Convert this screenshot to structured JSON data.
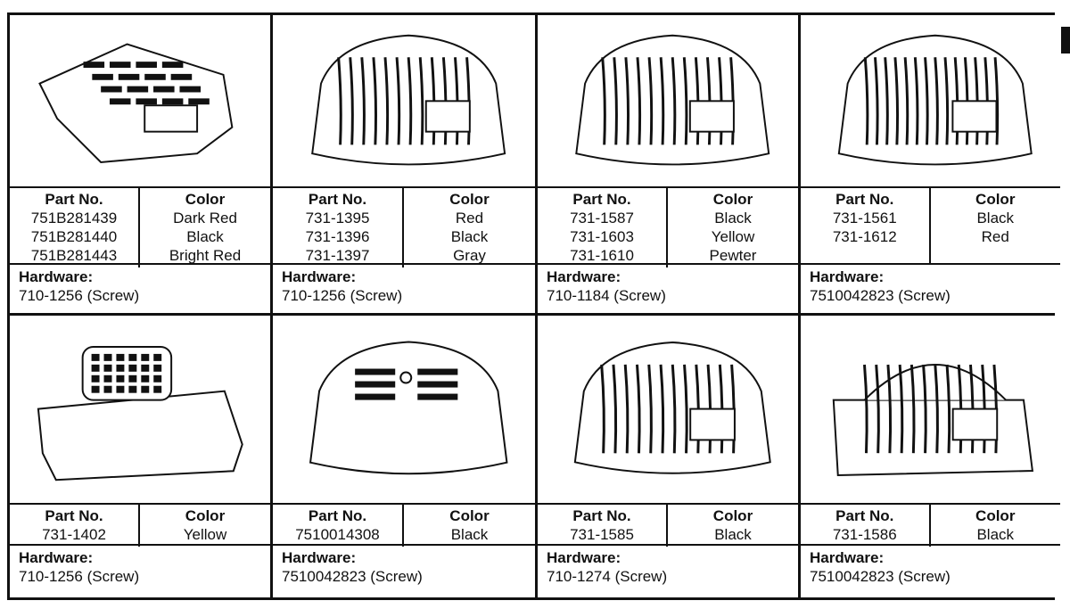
{
  "labels": {
    "part_no": "Part No.",
    "color": "Color",
    "hardware": "Hardware:"
  },
  "parts": [
    {
      "parts": [
        "751B281439",
        "751B281440",
        "751B281443"
      ],
      "colors": [
        "Dark Red",
        "Black",
        "Bright Red"
      ],
      "hardware": "710-1256 (Screw)",
      "style": "flat-slots"
    },
    {
      "parts": [
        "731-1395",
        "731-1396",
        "731-1397"
      ],
      "colors": [
        "Red",
        "Black",
        "Gray"
      ],
      "hardware": "710-1256 (Screw)",
      "style": "ribbed-dome"
    },
    {
      "parts": [
        "731-1587",
        "731-1603",
        "731-1610"
      ],
      "colors": [
        "Black",
        "Yellow",
        "Pewter"
      ],
      "hardware": "710-1184 (Screw)",
      "style": "ribbed-dome"
    },
    {
      "parts": [
        "731-1561",
        "731-1612"
      ],
      "colors": [
        "Black",
        "Red"
      ],
      "hardware": "7510042823 (Screw)",
      "style": "ribbed-small"
    },
    {
      "parts": [
        "731-1402"
      ],
      "colors": [
        "Yellow"
      ],
      "hardware": "710-1256 (Screw)",
      "style": "grid-top"
    },
    {
      "parts": [
        "7510014308"
      ],
      "colors": [
        "Black"
      ],
      "hardware": "7510042823 (Screw)",
      "style": "smooth-slots"
    },
    {
      "parts": [
        "731-1585"
      ],
      "colors": [
        "Black"
      ],
      "hardware": "710-1274 (Screw)",
      "style": "ribbed-dome"
    },
    {
      "parts": [
        "731-1586"
      ],
      "colors": [
        "Black"
      ],
      "hardware": "7510042823 (Screw)",
      "style": "ribbed-box"
    }
  ]
}
